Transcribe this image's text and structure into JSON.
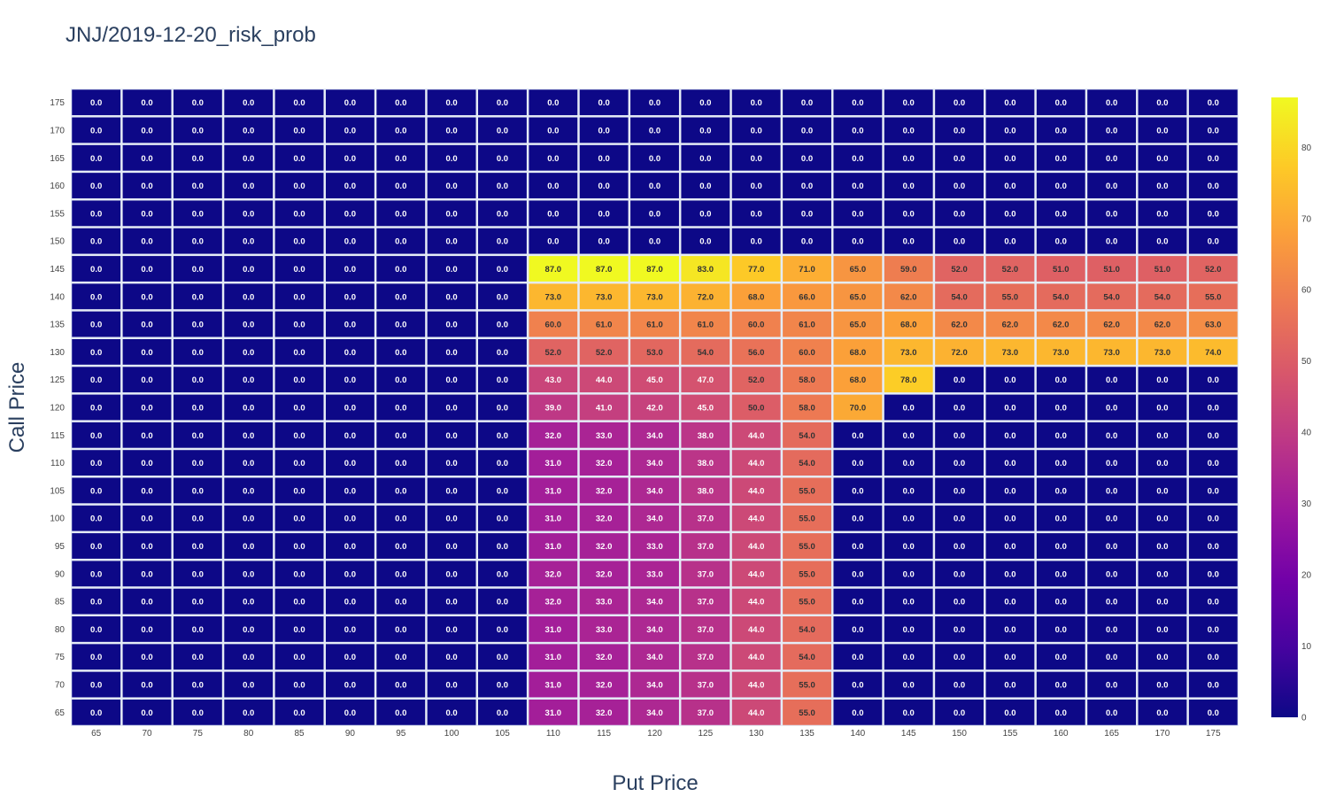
{
  "chart_data": {
    "type": "heatmap",
    "title": "JNJ/2019-12-20_risk_prob",
    "xlabel": "Put Price",
    "ylabel": "Call Price",
    "x": [
      "65",
      "70",
      "75",
      "80",
      "85",
      "90",
      "95",
      "100",
      "105",
      "110",
      "115",
      "120",
      "125",
      "130",
      "135",
      "140",
      "145",
      "150",
      "155",
      "160",
      "165",
      "170",
      "175"
    ],
    "y": [
      "65",
      "70",
      "75",
      "80",
      "85",
      "90",
      "95",
      "100",
      "105",
      "110",
      "115",
      "120",
      "125",
      "130",
      "135",
      "140",
      "145",
      "150",
      "155",
      "160",
      "165",
      "170",
      "175"
    ],
    "z": [
      [
        0,
        0,
        0,
        0,
        0,
        0,
        0,
        0,
        0,
        31,
        32,
        34,
        37,
        44,
        55,
        0,
        0,
        0,
        0,
        0,
        0,
        0,
        0
      ],
      [
        0,
        0,
        0,
        0,
        0,
        0,
        0,
        0,
        0,
        31,
        32,
        34,
        37,
        44,
        55,
        0,
        0,
        0,
        0,
        0,
        0,
        0,
        0
      ],
      [
        0,
        0,
        0,
        0,
        0,
        0,
        0,
        0,
        0,
        31,
        32,
        34,
        37,
        44,
        54,
        0,
        0,
        0,
        0,
        0,
        0,
        0,
        0
      ],
      [
        0,
        0,
        0,
        0,
        0,
        0,
        0,
        0,
        0,
        31,
        33,
        34,
        37,
        44,
        54,
        0,
        0,
        0,
        0,
        0,
        0,
        0,
        0
      ],
      [
        0,
        0,
        0,
        0,
        0,
        0,
        0,
        0,
        0,
        32,
        33,
        34,
        37,
        44,
        55,
        0,
        0,
        0,
        0,
        0,
        0,
        0,
        0
      ],
      [
        0,
        0,
        0,
        0,
        0,
        0,
        0,
        0,
        0,
        32,
        32,
        33,
        37,
        44,
        55,
        0,
        0,
        0,
        0,
        0,
        0,
        0,
        0
      ],
      [
        0,
        0,
        0,
        0,
        0,
        0,
        0,
        0,
        0,
        31,
        32,
        33,
        37,
        44,
        55,
        0,
        0,
        0,
        0,
        0,
        0,
        0,
        0
      ],
      [
        0,
        0,
        0,
        0,
        0,
        0,
        0,
        0,
        0,
        31,
        32,
        34,
        37,
        44,
        55,
        0,
        0,
        0,
        0,
        0,
        0,
        0,
        0
      ],
      [
        0,
        0,
        0,
        0,
        0,
        0,
        0,
        0,
        0,
        31,
        32,
        34,
        38,
        44,
        55,
        0,
        0,
        0,
        0,
        0,
        0,
        0,
        0
      ],
      [
        0,
        0,
        0,
        0,
        0,
        0,
        0,
        0,
        0,
        31,
        32,
        34,
        38,
        44,
        54,
        0,
        0,
        0,
        0,
        0,
        0,
        0,
        0
      ],
      [
        0,
        0,
        0,
        0,
        0,
        0,
        0,
        0,
        0,
        32,
        33,
        34,
        38,
        44,
        54,
        0,
        0,
        0,
        0,
        0,
        0,
        0,
        0
      ],
      [
        0,
        0,
        0,
        0,
        0,
        0,
        0,
        0,
        0,
        39,
        41,
        42,
        45,
        50,
        58,
        70,
        0,
        0,
        0,
        0,
        0,
        0,
        0
      ],
      [
        0,
        0,
        0,
        0,
        0,
        0,
        0,
        0,
        0,
        43,
        44,
        45,
        47,
        52,
        58,
        68,
        78,
        0,
        0,
        0,
        0,
        0,
        0
      ],
      [
        0,
        0,
        0,
        0,
        0,
        0,
        0,
        0,
        0,
        52,
        52,
        53,
        54,
        56,
        60,
        68,
        73,
        72,
        73,
        73,
        73,
        73,
        74
      ],
      [
        0,
        0,
        0,
        0,
        0,
        0,
        0,
        0,
        0,
        60,
        61,
        61,
        61,
        60,
        61,
        65,
        68,
        62,
        62,
        62,
        62,
        62,
        63
      ],
      [
        0,
        0,
        0,
        0,
        0,
        0,
        0,
        0,
        0,
        73,
        73,
        73,
        72,
        68,
        66,
        65,
        62,
        54,
        55,
        54,
        54,
        54,
        55
      ],
      [
        0,
        0,
        0,
        0,
        0,
        0,
        0,
        0,
        0,
        87,
        87,
        87,
        83,
        77,
        71,
        65,
        59,
        52,
        52,
        51,
        51,
        51,
        52
      ],
      [
        0,
        0,
        0,
        0,
        0,
        0,
        0,
        0,
        0,
        0,
        0,
        0,
        0,
        0,
        0,
        0,
        0,
        0,
        0,
        0,
        0,
        0,
        0
      ],
      [
        0,
        0,
        0,
        0,
        0,
        0,
        0,
        0,
        0,
        0,
        0,
        0,
        0,
        0,
        0,
        0,
        0,
        0,
        0,
        0,
        0,
        0,
        0
      ],
      [
        0,
        0,
        0,
        0,
        0,
        0,
        0,
        0,
        0,
        0,
        0,
        0,
        0,
        0,
        0,
        0,
        0,
        0,
        0,
        0,
        0,
        0,
        0
      ],
      [
        0,
        0,
        0,
        0,
        0,
        0,
        0,
        0,
        0,
        0,
        0,
        0,
        0,
        0,
        0,
        0,
        0,
        0,
        0,
        0,
        0,
        0,
        0
      ],
      [
        0,
        0,
        0,
        0,
        0,
        0,
        0,
        0,
        0,
        0,
        0,
        0,
        0,
        0,
        0,
        0,
        0,
        0,
        0,
        0,
        0,
        0,
        0
      ],
      [
        0,
        0,
        0,
        0,
        0,
        0,
        0,
        0,
        0,
        0,
        0,
        0,
        0,
        0,
        0,
        0,
        0,
        0,
        0,
        0,
        0,
        0,
        0
      ]
    ],
    "colorscale": "plasma",
    "zrange": [
      0,
      87
    ],
    "colorbar_ticks": [
      0,
      10,
      20,
      30,
      40,
      50,
      60,
      70,
      80
    ],
    "grid": false,
    "cell_gap_color": "#e5ecf6"
  }
}
